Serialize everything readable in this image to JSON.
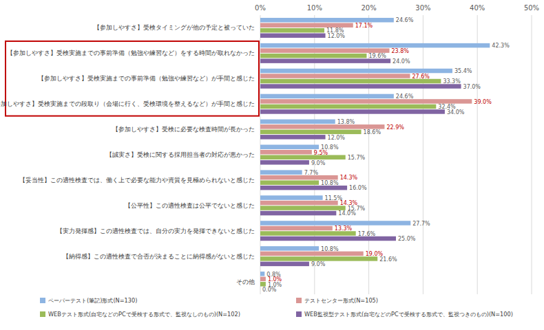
{
  "chart_data": {
    "type": "bar",
    "orientation": "horizontal",
    "grid": true,
    "data_labels": true,
    "legend": "bottom",
    "xlim": [
      0,
      50
    ],
    "xticks": [
      {
        "value": 0,
        "label": "0%"
      },
      {
        "value": 10,
        "label": "10%"
      },
      {
        "value": 20,
        "label": "20%"
      },
      {
        "value": 30,
        "label": "30%"
      },
      {
        "value": 40,
        "label": "40%"
      },
      {
        "value": 50,
        "label": "50%"
      }
    ],
    "categories": [
      "【参加しやすさ】受検タイミングが他の予定と被っていた",
      "【参加しやすさ】受検実施までの事前準備（勉強や練習など）をする時間が取れなかった",
      "【参加しやすさ】受検実施までの事前準備（勉強や練習など）が手間と感じた",
      "【参加しやすさ】受検実施までの段取り（会場に行く、受検環境を整えるなど）が手間と感じた",
      "【参加しやすさ】受検に必要な検査時間が長かった",
      "【誠実さ】受検に関する採用担当者の対応が悪かった",
      "【妥当性】この適性検査では、働く上で必要な能力や資質を見極められないと感じた",
      "【公平性】この適性検査は公平でないと感じた",
      "【実力発揮感】この適性検査では、自分の実力を発揮できないと感じた",
      "【納得感】この適性検査で合否が決まることに納得感がないと感じた",
      "その他"
    ],
    "series": [
      {
        "name": "ペーパーテスト(筆記)形式(N=130)",
        "color": "#8db4e2",
        "values": [
          24.6,
          42.3,
          35.4,
          24.6,
          13.8,
          10.8,
          7.7,
          11.5,
          27.7,
          10.8,
          0.8
        ],
        "value_labels": [
          "24.6%",
          "42.3%",
          "35.4%",
          "24.6%",
          "13.8%",
          "10.8%",
          "7.7%",
          "11.5%",
          "27.7%",
          "10.8%",
          "0.8%"
        ]
      },
      {
        "name": "テストセンター形式(N=105)",
        "color": "#da9694",
        "values": [
          17.1,
          23.8,
          27.6,
          39.0,
          22.9,
          9.5,
          14.3,
          14.3,
          13.3,
          19.0,
          1.0
        ],
        "value_labels": [
          "17.1%",
          "23.8%",
          "27.6%",
          "39.0%",
          "22.9%",
          "9.5%",
          "14.3%",
          "14.3%",
          "13.3%",
          "19.0%",
          "1.0%"
        ]
      },
      {
        "name": "WEBテスト形式(自宅などのPCで受検する形式で、監視なしのもの)(N=102)",
        "color": "#9bbb59",
        "values": [
          11.8,
          19.6,
          33.3,
          32.4,
          18.6,
          15.7,
          10.8,
          15.7,
          17.6,
          21.6,
          1.0
        ],
        "value_labels": [
          "11.8%",
          "19.6%",
          "33.3%",
          "32.4%",
          "18.6%",
          "15.7%",
          "10.8%",
          "15.7%",
          "17.6%",
          "21.6%",
          "1.0%"
        ]
      },
      {
        "name": "WEB監視型テスト形式(自宅などのPCで受検する形式で、監視つきのもの)(N=100)",
        "color": "#8064a2",
        "values": [
          12.0,
          24.0,
          37.0,
          34.0,
          12.0,
          9.0,
          16.0,
          14.0,
          25.0,
          9.0,
          0.0
        ],
        "value_labels": [
          "12.0%",
          "24.0%",
          "37.0%",
          "34.0%",
          "12.0%",
          "9.0%",
          "16.0%",
          "14.0%",
          "25.0%",
          "9.0%",
          "0.0%"
        ]
      }
    ]
  }
}
